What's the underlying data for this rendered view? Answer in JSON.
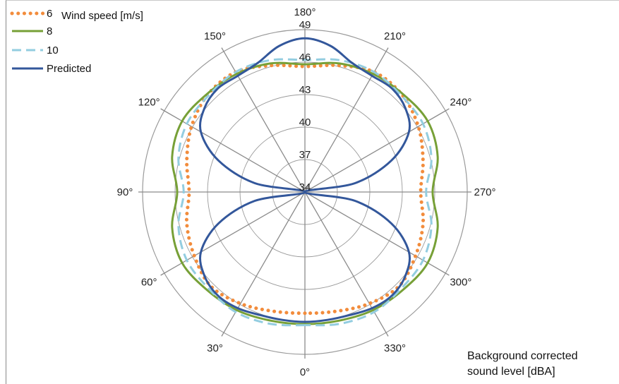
{
  "chart_data": {
    "type": "polar-line",
    "angle_unit": "degrees",
    "angle_ticks": [
      0,
      30,
      60,
      90,
      120,
      150,
      180,
      210,
      240,
      270,
      300,
      330
    ],
    "angle_labels": [
      "0°",
      "30°",
      "60°",
      "90°",
      "120°",
      "150°",
      "180°",
      "210°",
      "240°",
      "270°",
      "300°",
      "330°"
    ],
    "angle_zero": "bottom",
    "angle_direction": "clockwise",
    "radial_ticks": [
      34,
      37,
      40,
      43,
      46,
      49
    ],
    "radial_labels": [
      "34",
      "37",
      "40",
      "43",
      "46",
      "49"
    ],
    "r_range": [
      34,
      49
    ],
    "outer_ring": 49,
    "grid": true,
    "legend_title": "Wind speed [m/s]",
    "legend_position": "top-left",
    "note_line1": "Background corrected",
    "note_line2": "sound level  [dBA]",
    "series": [
      {
        "name": "6",
        "color": "#f28c3c",
        "style": "dotted",
        "angles": [
          0,
          15,
          30,
          45,
          60,
          75,
          90,
          105,
          120,
          135,
          150,
          165,
          180,
          195,
          210,
          225,
          240,
          255,
          270,
          285,
          300,
          315,
          330,
          345
        ],
        "values": [
          45.2,
          45.4,
          45.9,
          46.3,
          45.8,
          45.3,
          44.7,
          45.3,
          46.1,
          46.7,
          46.8,
          46.1,
          45.6,
          46.1,
          46.8,
          46.7,
          46.1,
          45.3,
          44.7,
          45.3,
          45.8,
          46.3,
          45.9,
          45.4
        ]
      },
      {
        "name": "8",
        "color": "#77a037",
        "style": "solid",
        "angles": [
          0,
          15,
          30,
          45,
          60,
          75,
          90,
          105,
          120,
          135,
          150,
          165,
          180,
          195,
          210,
          225,
          240,
          255,
          270,
          285,
          300,
          315,
          330,
          345
        ],
        "values": [
          46.2,
          46.3,
          46.6,
          46.8,
          47.1,
          46.7,
          45.8,
          46.7,
          47.1,
          46.8,
          46.6,
          46.3,
          45.8,
          46.3,
          46.6,
          46.8,
          47.1,
          46.7,
          45.8,
          46.7,
          47.1,
          46.8,
          46.6,
          46.3
        ]
      },
      {
        "name": "10",
        "color": "#93cde0",
        "style": "dashed",
        "angles": [
          0,
          15,
          30,
          45,
          60,
          75,
          90,
          105,
          120,
          135,
          150,
          165,
          180,
          195,
          210,
          225,
          240,
          255,
          270,
          285,
          300,
          315,
          330,
          345
        ],
        "values": [
          46.3,
          46.6,
          46.8,
          46.6,
          46.6,
          46.1,
          45.2,
          46.1,
          46.6,
          46.6,
          46.8,
          46.6,
          46.2,
          46.6,
          46.8,
          46.6,
          46.6,
          46.1,
          45.2,
          46.1,
          46.6,
          46.6,
          46.8,
          46.6
        ]
      },
      {
        "name": "Predicted",
        "color": "#33579b",
        "style": "solid",
        "angles": [
          0,
          10,
          20,
          30,
          40,
          50,
          60,
          70,
          80,
          90,
          100,
          110,
          120,
          130,
          140,
          150,
          160,
          170,
          180,
          190,
          200,
          210,
          220,
          230,
          240,
          250,
          260,
          270,
          280,
          290,
          300,
          310,
          320,
          330,
          340,
          350
        ],
        "values": [
          46.0,
          46.0,
          46.1,
          46.4,
          46.5,
          46.1,
          45.1,
          42.5,
          38.7,
          34.0,
          38.7,
          42.5,
          45.1,
          46.1,
          46.5,
          46.4,
          46.7,
          47.7,
          48.2,
          47.7,
          46.7,
          46.4,
          46.5,
          46.1,
          45.1,
          42.5,
          38.7,
          34.0,
          38.7,
          42.5,
          45.1,
          46.1,
          46.5,
          46.4,
          46.1,
          46.0
        ]
      }
    ]
  }
}
